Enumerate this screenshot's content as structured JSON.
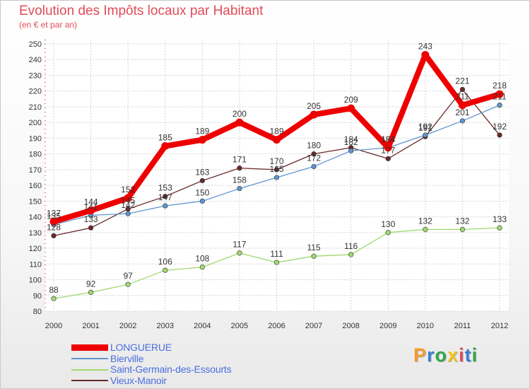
{
  "title": "Evolution des Impôts locaux par Habitant",
  "subtitle": "(en € et par an)",
  "logo": {
    "text": "Proxiti",
    "colors": [
      "#f39a2b",
      "#3a7fd0",
      "#2fa64a",
      "#f2c21b",
      "#e04b57",
      "#3a7fd0",
      "#2fa64a"
    ]
  },
  "chart_data": {
    "type": "line",
    "x": [
      "2000",
      "2001",
      "2002",
      "2003",
      "2004",
      "2005",
      "2006",
      "2007",
      "2008",
      "2009",
      "2010",
      "2011",
      "2012"
    ],
    "ylim": [
      80,
      250
    ],
    "yticks": [
      80,
      90,
      100,
      110,
      120,
      130,
      140,
      150,
      160,
      170,
      180,
      190,
      200,
      210,
      220,
      230,
      240,
      250
    ],
    "grid": true,
    "series": [
      {
        "name": "LONGUERUE",
        "color": "#ee0000",
        "values": [
          137,
          144,
          152,
          185,
          189,
          200,
          189,
          205,
          209,
          184,
          243,
          211,
          218
        ]
      },
      {
        "name": "Bierville",
        "color": "#5f95cf",
        "values": [
          135,
          141,
          142,
          147,
          150,
          158,
          165,
          172,
          182,
          184,
          192,
          201,
          211
        ]
      },
      {
        "name": "Saint-Germain-des-Essourts",
        "color": "#9fd96f",
        "values": [
          88,
          92,
          97,
          106,
          108,
          117,
          111,
          115,
          116,
          130,
          132,
          132,
          133
        ]
      },
      {
        "name": "Vieux-Manoir",
        "color": "#6a2a2a",
        "values": [
          128,
          133,
          145,
          153,
          163,
          171,
          170,
          180,
          184,
          177,
          191,
          221,
          192
        ]
      }
    ]
  }
}
